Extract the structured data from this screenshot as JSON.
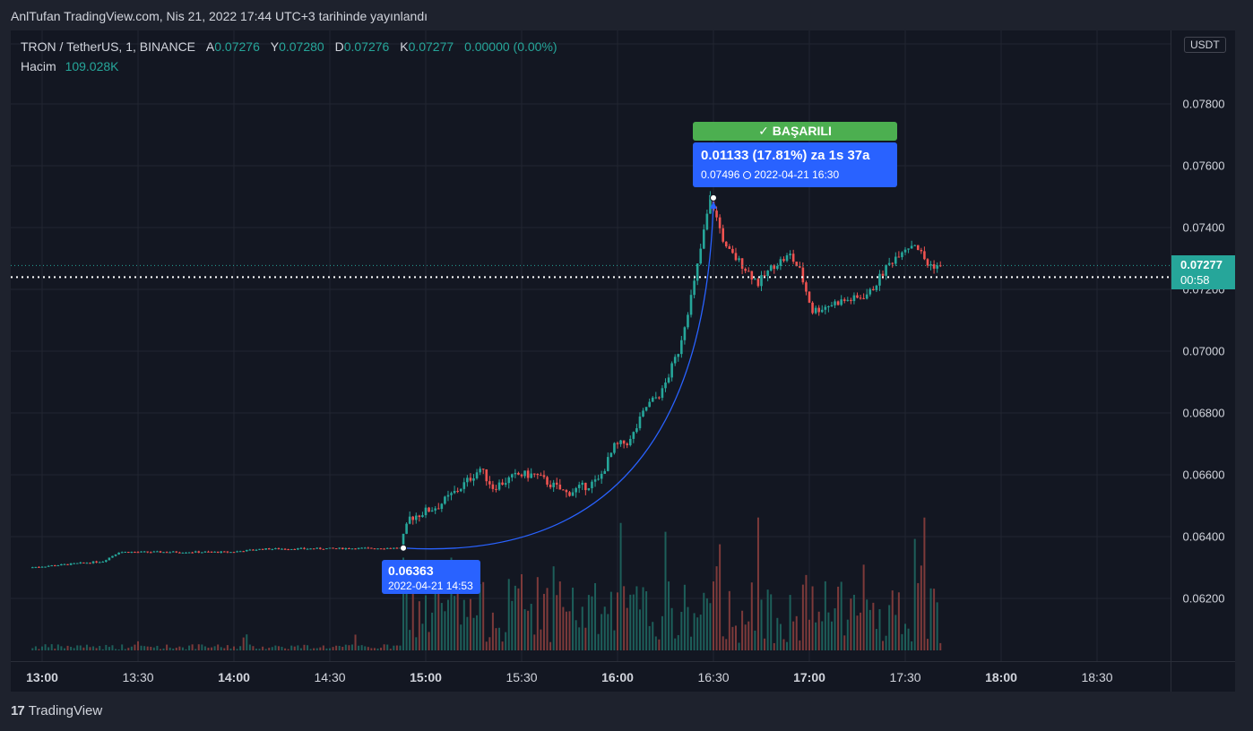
{
  "caption": "AnlTufan TradingView.com, Nis 21, 2022 17:44 UTC+3 tarihinde yayınlandı",
  "legend": {
    "symbol": "TRON / TetherUS, 1, BINANCE",
    "open_label": "A",
    "open": "0.07276",
    "high_label": "Y",
    "high": "0.07280",
    "low_label": "D",
    "low": "0.07276",
    "close_label": "K",
    "close": "0.07277",
    "change": "0.00000 (0.00%)",
    "volume_label": "Hacim",
    "volume": "109.028K"
  },
  "price_scale": {
    "unit": "USDT",
    "ticks": [
      "0.07800",
      "0.07600",
      "0.07400",
      "0.07200",
      "0.07000",
      "0.06800",
      "0.06600",
      "0.06400",
      "0.06200"
    ],
    "last_price": "0.07277",
    "countdown": "00:58"
  },
  "time_scale": {
    "ticks": [
      "13:00",
      "13:30",
      "14:00",
      "14:30",
      "15:00",
      "15:30",
      "16:00",
      "16:30",
      "17:00",
      "17:30",
      "18:00",
      "18:30"
    ]
  },
  "annotation": {
    "start_price": "0.06363",
    "start_time": "2022-04-21 14:53",
    "status": "BAŞARILI",
    "gain": "0.01133 (17.81%) za 1s 37a",
    "target_price": "0.07496",
    "target_time": "2022-04-21  16:30"
  },
  "brand": "TradingView",
  "colors": {
    "background": "#131722",
    "up": "#26a69a",
    "down": "#ef5350",
    "annotation": "#2962ff",
    "success": "#4caf50"
  },
  "chart_data": {
    "type": "candlestick",
    "title": "TRON / TetherUS, 1, BINANCE",
    "ylim": [
      0.06,
      0.0805
    ],
    "x_ticks": [
      "13:00",
      "13:30",
      "14:00",
      "14:30",
      "15:00",
      "15:30",
      "16:00",
      "16:30",
      "17:00",
      "17:30",
      "18:00",
      "18:30"
    ],
    "price_path": [
      {
        "t": "12:57",
        "p": 0.063
      },
      {
        "t": "13:20",
        "p": 0.0632
      },
      {
        "t": "13:25",
        "p": 0.0635
      },
      {
        "t": "14:00",
        "p": 0.0635
      },
      {
        "t": "14:10",
        "p": 0.0636
      },
      {
        "t": "14:53",
        "p": 0.06363
      },
      {
        "t": "14:56",
        "p": 0.0646
      },
      {
        "t": "15:05",
        "p": 0.065
      },
      {
        "t": "15:12",
        "p": 0.0656
      },
      {
        "t": "15:18",
        "p": 0.0662
      },
      {
        "t": "15:22",
        "p": 0.0656
      },
      {
        "t": "15:30",
        "p": 0.066
      },
      {
        "t": "15:35",
        "p": 0.066
      },
      {
        "t": "15:45",
        "p": 0.0654
      },
      {
        "t": "15:55",
        "p": 0.0658
      },
      {
        "t": "16:00",
        "p": 0.0669
      },
      {
        "t": "16:05",
        "p": 0.0671
      },
      {
        "t": "16:10",
        "p": 0.0682
      },
      {
        "t": "16:15",
        "p": 0.0687
      },
      {
        "t": "16:20",
        "p": 0.07
      },
      {
        "t": "16:25",
        "p": 0.0722
      },
      {
        "t": "16:30",
        "p": 0.07496
      },
      {
        "t": "16:35",
        "p": 0.0733
      },
      {
        "t": "16:40",
        "p": 0.0728
      },
      {
        "t": "16:45",
        "p": 0.0722
      },
      {
        "t": "16:50",
        "p": 0.0728
      },
      {
        "t": "16:55",
        "p": 0.0731
      },
      {
        "t": "16:58",
        "p": 0.0726
      },
      {
        "t": "17:02",
        "p": 0.0713
      },
      {
        "t": "17:10",
        "p": 0.0716
      },
      {
        "t": "17:16",
        "p": 0.0717
      },
      {
        "t": "17:20",
        "p": 0.0719
      },
      {
        "t": "17:25",
        "p": 0.0727
      },
      {
        "t": "17:30",
        "p": 0.0733
      },
      {
        "t": "17:34",
        "p": 0.0735
      },
      {
        "t": "17:38",
        "p": 0.0728
      },
      {
        "t": "17:41",
        "p": 0.07277
      }
    ],
    "last_price": 0.07277,
    "start_point": {
      "t": "14:53",
      "p": 0.06363
    },
    "target_point": {
      "t": "16:30",
      "p": 0.07496
    }
  }
}
